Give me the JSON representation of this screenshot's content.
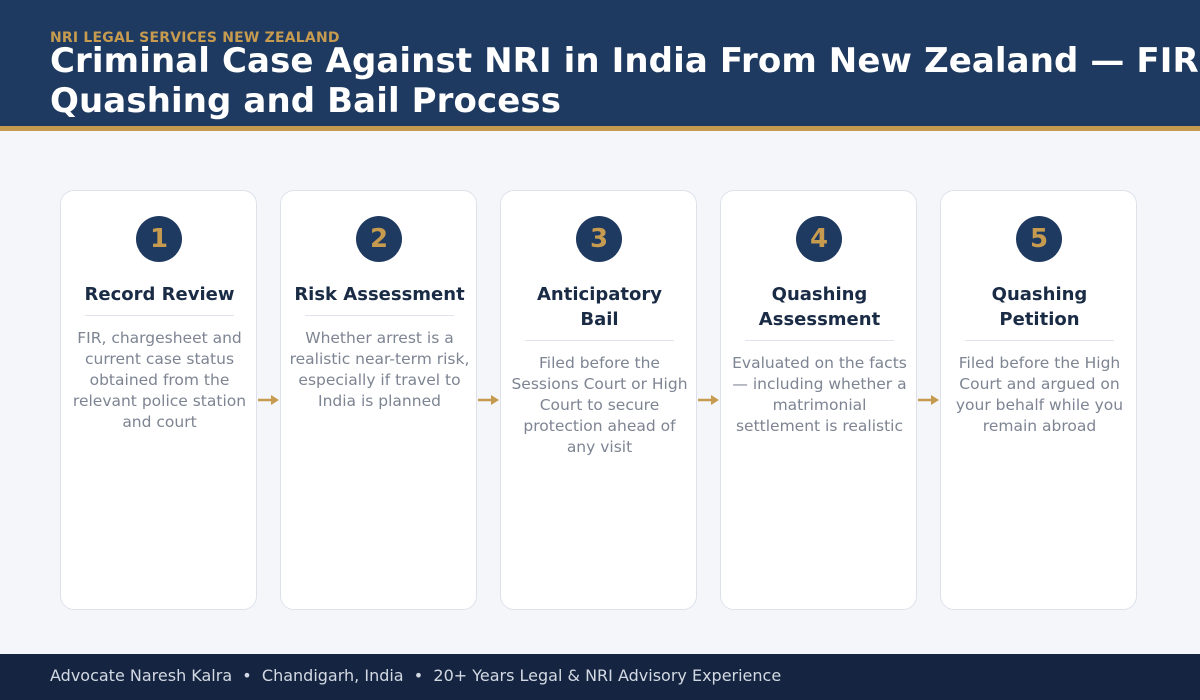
{
  "header": {
    "eyebrow": "NRI LEGAL SERVICES NEW ZEALAND",
    "title": "Criminal Case Against NRI in India From New Zealand — FIR Quashing and Bail Process"
  },
  "steps": [
    {
      "number": "1",
      "title": "Record Review",
      "description": "FIR, chargesheet and current case status obtained from the relevant police station and court"
    },
    {
      "number": "2",
      "title": "Risk Assessment",
      "description": "Whether arrest is a realistic near-term risk, especially if travel to India is planned"
    },
    {
      "number": "3",
      "title": "Anticipatory Bail",
      "description": "Filed before the Sessions Court or High Court to secure protection ahead of any visit"
    },
    {
      "number": "4",
      "title": "Quashing Assessment",
      "description": "Evaluated on the facts — including whether a matrimonial settlement is realistic"
    },
    {
      "number": "5",
      "title": "Quashing Petition",
      "description": "Filed before the High Court and argued on your behalf while you remain abroad"
    }
  ],
  "footer": {
    "text": "Advocate Naresh Kalra  •  Chandigarh, India  •  20+ Years Legal & NRI Advisory Experience"
  },
  "colors": {
    "navy": "#1f3a60",
    "gold": "#c69b4f",
    "footer_bg": "#152541"
  },
  "icons": {
    "step_connector": "arrow-right-icon"
  }
}
